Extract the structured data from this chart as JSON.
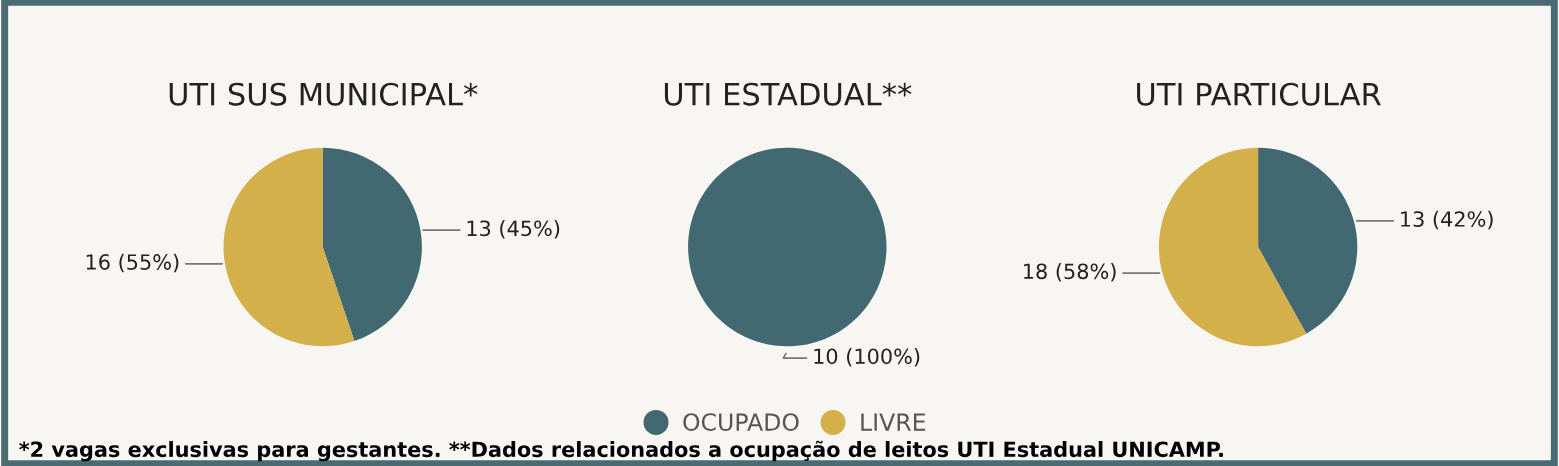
{
  "chart_data": [
    {
      "type": "pie",
      "title": "UTI SUS MUNICIPAL*",
      "categories": [
        "OCUPADO",
        "LIVRE"
      ],
      "values": [
        13,
        16
      ],
      "colors": [
        "#426871",
        "#d4b04a"
      ],
      "value_labels": [
        "13 (45%)",
        "16 (55%)"
      ],
      "legend": "bottom",
      "annotations": [
        "*2 vagas exclusivas para gestantes. **Dados relacionados a ocupação de leitos UTI Estadual UNICAMP."
      ]
    },
    {
      "type": "pie",
      "title": "UTI ESTADUAL**",
      "categories": [
        null,
        null
      ],
      "values": [
        10,
        0
      ],
      "colors": [
        "#426871",
        "#d4b04a"
      ],
      "value_labels": [
        "10 (100%)",
        null
      ]
    },
    {
      "type": "pie",
      "title": "UTI PARTICULAR",
      "categories": [
        null,
        null
      ],
      "values": [
        13,
        18
      ],
      "colors": [
        "#426871",
        "#d4b04a"
      ],
      "value_labels": [
        "13 (42%)",
        "18 (58%)"
      ]
    }
  ]
}
